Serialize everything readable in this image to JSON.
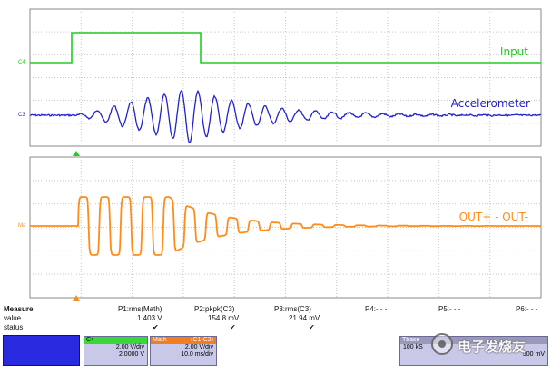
{
  "traces": {
    "input": {
      "label": "Input",
      "channel": "C4",
      "color": "#22cc22"
    },
    "accel": {
      "label": "Accelerometer",
      "channel": "C3",
      "color": "#2222cc"
    },
    "out": {
      "label": "OUT+ - OUT-",
      "channel": "Ma",
      "color": "#ff8c1a"
    }
  },
  "measure": {
    "header": "Measure",
    "row_value": "value",
    "row_status": "status",
    "cols": [
      {
        "name": "P1:rms(Math)",
        "value": "1.403 V",
        "status": "✔"
      },
      {
        "name": "P2:pkpk(C3)",
        "value": "154.8 mV",
        "status": "✔"
      },
      {
        "name": "P3:rms(C3)",
        "value": "21.94 mV",
        "status": "✔"
      },
      {
        "name": "P4:- - -",
        "value": "",
        "status": ""
      },
      {
        "name": "P5:- - -",
        "value": "",
        "status": ""
      },
      {
        "name": "P6:- - -",
        "value": "",
        "status": ""
      }
    ]
  },
  "channels": {
    "c4": {
      "title": "C4",
      "line1": "2.00 V/div",
      "line2": "2.0000 V"
    },
    "math": {
      "title": "Math",
      "formula": "(C1-C2)",
      "line1": "2.00 V/div",
      "line2": "10.0 ms/div"
    },
    "tbase": {
      "title": "Tbase",
      "line1": "100 kS",
      "line2": "500 mV"
    }
  },
  "watermark": "电子发烧友",
  "colors": {
    "grid": "#c8c8c8",
    "panel_blue": "#2a2ae0",
    "panel_green": "#38d838",
    "panel_orange": "#f07e22"
  }
}
